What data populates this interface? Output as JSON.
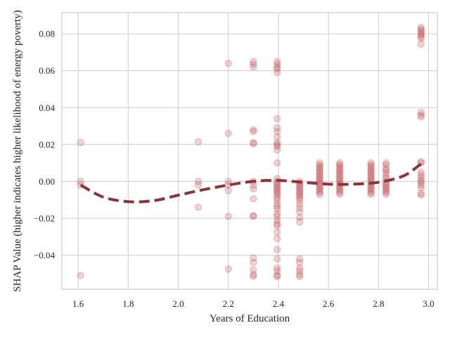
{
  "chart_data": {
    "type": "scatter",
    "title": "",
    "xlabel": "Years of Education",
    "ylabel": "SHAP Value (higher indicates higher likelihood of energy poverty)",
    "xlim": [
      1.535,
      3.035
    ],
    "ylim": [
      -0.0585,
      0.0915
    ],
    "xticks": [
      "1.6",
      "1.8",
      "2.0",
      "2.2",
      "2.4",
      "2.6",
      "2.8",
      "3.0"
    ],
    "yticks": [
      "−0.04",
      "−0.02",
      "0.00",
      "0.02",
      "0.04",
      "0.06",
      "0.08"
    ],
    "grid": true,
    "legend": "none",
    "colors": {
      "points": "#c44e52",
      "trend": "#8b3338",
      "grid": "#cccccc"
    },
    "series": [
      {
        "type": "scatter",
        "points": [
          [
            1.61,
            0.021
          ],
          [
            1.61,
            0.0
          ],
          [
            1.61,
            -0.002
          ],
          [
            1.61,
            -0.051
          ],
          [
            2.08,
            0.0215
          ],
          [
            2.08,
            0.0
          ],
          [
            2.08,
            -0.002
          ],
          [
            2.08,
            -0.014
          ],
          [
            2.2,
            0.064
          ],
          [
            2.2,
            0.026
          ],
          [
            2.2,
            0.0
          ],
          [
            2.2,
            -0.002
          ],
          [
            2.2,
            -0.005
          ],
          [
            2.2,
            -0.019
          ],
          [
            2.2,
            -0.0475
          ],
          [
            2.3,
            0.065
          ],
          [
            2.3,
            0.0635
          ],
          [
            2.3,
            0.062
          ],
          [
            2.3,
            0.028
          ],
          [
            2.3,
            0.027
          ],
          [
            2.3,
            0.021
          ],
          [
            2.3,
            0.0205
          ],
          [
            2.3,
            0.0
          ],
          [
            2.3,
            -0.002
          ],
          [
            2.3,
            -0.004
          ],
          [
            2.3,
            -0.0095
          ],
          [
            2.3,
            -0.0185
          ],
          [
            2.3,
            -0.019
          ],
          [
            2.3,
            -0.0415
          ],
          [
            2.3,
            -0.044
          ],
          [
            2.3,
            -0.048
          ],
          [
            2.3,
            -0.0505
          ],
          [
            2.3,
            -0.0515
          ],
          [
            2.395,
            0.065
          ],
          [
            2.395,
            0.0635
          ],
          [
            2.395,
            0.062
          ],
          [
            2.395,
            0.061
          ],
          [
            2.395,
            0.059
          ],
          [
            2.395,
            0.034
          ],
          [
            2.395,
            0.029
          ],
          [
            2.395,
            0.027
          ],
          [
            2.395,
            0.024
          ],
          [
            2.395,
            0.021
          ],
          [
            2.395,
            0.02
          ],
          [
            2.395,
            0.019
          ],
          [
            2.395,
            0.017
          ],
          [
            2.395,
            0.01
          ],
          [
            2.395,
            0.0015
          ],
          [
            2.395,
            0.0
          ],
          [
            2.395,
            -0.001
          ],
          [
            2.395,
            -0.002
          ],
          [
            2.395,
            -0.003
          ],
          [
            2.395,
            -0.004
          ],
          [
            2.395,
            -0.005
          ],
          [
            2.395,
            -0.006
          ],
          [
            2.395,
            -0.007
          ],
          [
            2.395,
            -0.0085
          ],
          [
            2.395,
            -0.01
          ],
          [
            2.395,
            -0.012
          ],
          [
            2.395,
            -0.0135
          ],
          [
            2.395,
            -0.015
          ],
          [
            2.395,
            -0.0175
          ],
          [
            2.395,
            -0.019
          ],
          [
            2.395,
            -0.021
          ],
          [
            2.395,
            -0.023
          ],
          [
            2.395,
            -0.024
          ],
          [
            2.395,
            -0.0275
          ],
          [
            2.395,
            -0.031
          ],
          [
            2.395,
            -0.037
          ],
          [
            2.395,
            -0.042
          ],
          [
            2.395,
            -0.047
          ],
          [
            2.395,
            -0.0485
          ],
          [
            2.395,
            -0.051
          ],
          [
            2.395,
            -0.0515
          ],
          [
            2.485,
            0.0
          ],
          [
            2.485,
            -0.001
          ],
          [
            2.485,
            -0.002
          ],
          [
            2.485,
            -0.003
          ],
          [
            2.485,
            -0.004
          ],
          [
            2.485,
            -0.005
          ],
          [
            2.485,
            -0.006
          ],
          [
            2.485,
            -0.007
          ],
          [
            2.485,
            -0.008
          ],
          [
            2.485,
            -0.009
          ],
          [
            2.485,
            -0.0105
          ],
          [
            2.485,
            -0.0125
          ],
          [
            2.485,
            -0.0145
          ],
          [
            2.485,
            -0.0165
          ],
          [
            2.485,
            -0.0195
          ],
          [
            2.485,
            -0.022
          ],
          [
            2.485,
            -0.042
          ],
          [
            2.485,
            -0.044
          ],
          [
            2.485,
            -0.047
          ],
          [
            2.485,
            -0.0485
          ],
          [
            2.485,
            -0.0505
          ],
          [
            2.485,
            -0.0515
          ],
          [
            2.565,
            0.01
          ],
          [
            2.565,
            0.009
          ],
          [
            2.565,
            0.008
          ],
          [
            2.565,
            0.007
          ],
          [
            2.565,
            0.006
          ],
          [
            2.565,
            0.005
          ],
          [
            2.565,
            0.004
          ],
          [
            2.565,
            0.003
          ],
          [
            2.565,
            0.002
          ],
          [
            2.565,
            0.001
          ],
          [
            2.565,
            0.0
          ],
          [
            2.565,
            -0.001
          ],
          [
            2.565,
            -0.002
          ],
          [
            2.565,
            -0.003
          ],
          [
            2.565,
            -0.004
          ],
          [
            2.565,
            -0.005
          ],
          [
            2.565,
            -0.006
          ],
          [
            2.565,
            -0.007
          ],
          [
            2.645,
            0.01
          ],
          [
            2.645,
            0.009
          ],
          [
            2.645,
            0.008
          ],
          [
            2.645,
            0.007
          ],
          [
            2.645,
            0.006
          ],
          [
            2.645,
            0.005
          ],
          [
            2.645,
            0.004
          ],
          [
            2.645,
            0.003
          ],
          [
            2.645,
            0.002
          ],
          [
            2.645,
            0.001
          ],
          [
            2.645,
            0.0
          ],
          [
            2.645,
            -0.001
          ],
          [
            2.645,
            -0.002
          ],
          [
            2.645,
            -0.003
          ],
          [
            2.645,
            -0.004
          ],
          [
            2.645,
            -0.005
          ],
          [
            2.645,
            -0.006
          ],
          [
            2.645,
            -0.007
          ],
          [
            2.77,
            0.01
          ],
          [
            2.77,
            0.009
          ],
          [
            2.77,
            0.008
          ],
          [
            2.77,
            0.007
          ],
          [
            2.77,
            0.006
          ],
          [
            2.77,
            0.005
          ],
          [
            2.77,
            0.004
          ],
          [
            2.77,
            0.003
          ],
          [
            2.77,
            0.002
          ],
          [
            2.77,
            0.001
          ],
          [
            2.77,
            0.0
          ],
          [
            2.77,
            -0.001
          ],
          [
            2.77,
            -0.002
          ],
          [
            2.77,
            -0.003
          ],
          [
            2.77,
            -0.004
          ],
          [
            2.77,
            -0.005
          ],
          [
            2.77,
            -0.006
          ],
          [
            2.77,
            -0.007
          ],
          [
            2.83,
            0.01
          ],
          [
            2.83,
            0.009
          ],
          [
            2.83,
            0.007
          ],
          [
            2.83,
            0.006
          ],
          [
            2.83,
            0.0045
          ],
          [
            2.83,
            0.003
          ],
          [
            2.83,
            0.0015
          ],
          [
            2.83,
            0.0
          ],
          [
            2.83,
            -0.001
          ],
          [
            2.83,
            -0.002
          ],
          [
            2.83,
            -0.003
          ],
          [
            2.83,
            -0.004
          ],
          [
            2.83,
            -0.005
          ],
          [
            2.83,
            -0.006
          ],
          [
            2.83,
            -0.007
          ],
          [
            2.97,
            0.0835
          ],
          [
            2.97,
            0.0825
          ],
          [
            2.97,
            0.0815
          ],
          [
            2.97,
            0.0805
          ],
          [
            2.97,
            0.0795
          ],
          [
            2.97,
            0.0785
          ],
          [
            2.97,
            0.0775
          ],
          [
            2.97,
            0.0745
          ],
          [
            2.97,
            0.0375
          ],
          [
            2.97,
            0.036
          ],
          [
            2.97,
            0.035
          ],
          [
            2.97,
            0.0105
          ],
          [
            2.97,
            0.01
          ],
          [
            2.97,
            0.005
          ],
          [
            2.97,
            0.0035
          ],
          [
            2.97,
            0.002
          ],
          [
            2.97,
            0.0005
          ],
          [
            2.97,
            -0.0005
          ],
          [
            2.97,
            -0.002
          ],
          [
            2.97,
            -0.0035
          ],
          [
            2.97,
            -0.0065
          ],
          [
            2.97,
            -0.0075
          ]
        ]
      },
      {
        "type": "line",
        "style": "dashed",
        "points": [
          [
            1.61,
            -0.002
          ],
          [
            1.7,
            -0.0085
          ],
          [
            1.8,
            -0.011
          ],
          [
            1.9,
            -0.0105
          ],
          [
            2.0,
            -0.0075
          ],
          [
            2.1,
            -0.0045
          ],
          [
            2.2,
            -0.002
          ],
          [
            2.3,
            0.0
          ],
          [
            2.4,
            0.0005
          ],
          [
            2.5,
            -0.0005
          ],
          [
            2.6,
            -0.0015
          ],
          [
            2.7,
            -0.0015
          ],
          [
            2.8,
            -0.0005
          ],
          [
            2.9,
            0.003
          ],
          [
            2.97,
            0.0095
          ]
        ]
      }
    ]
  }
}
